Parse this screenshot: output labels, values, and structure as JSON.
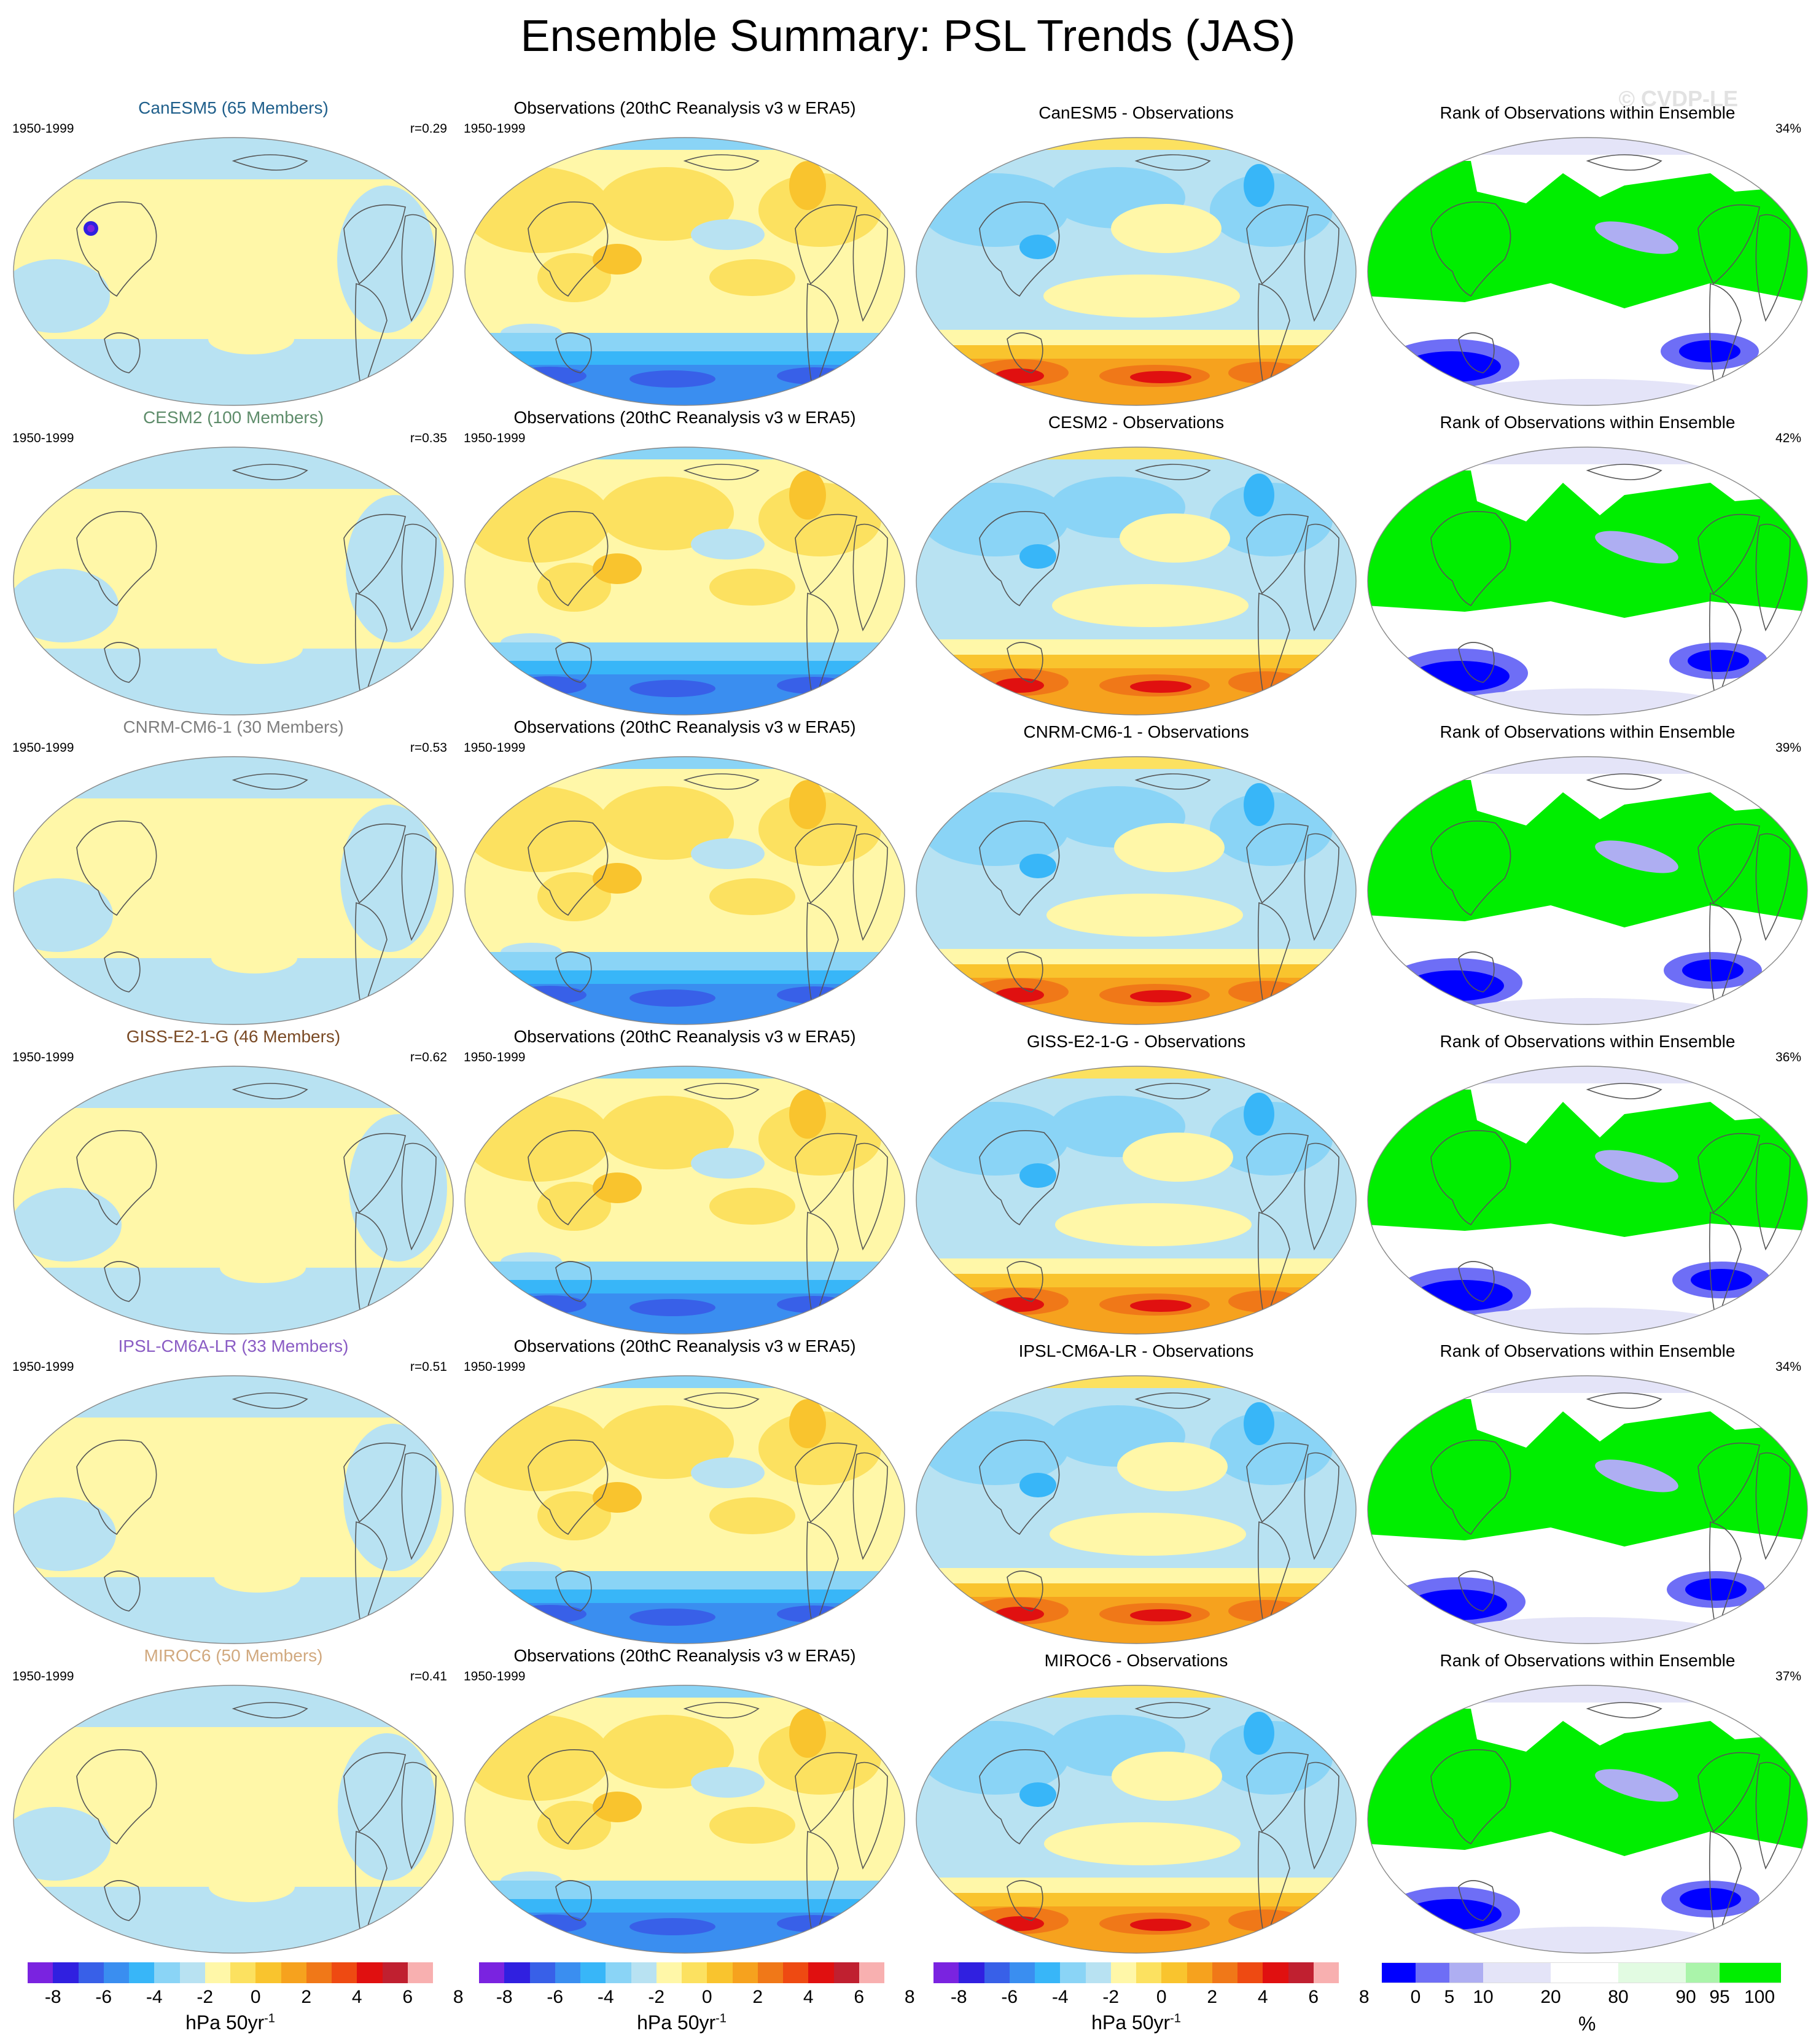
{
  "title": "Ensemble Summary: PSL Trends (JAS)",
  "watermark": "© CVDP-LE",
  "period": "1950-1999",
  "obs_title": "Observations (20thC Reanalysis v3 w ERA5)",
  "rank_title": "Rank of Observations within Ensemble",
  "rows": [
    {
      "model_title": "CanESM5 (65 Members)",
      "model_color": "#1f5f8b",
      "corr": "r=0.29",
      "diff_title": "CanESM5 - Observations",
      "rank_pct": "34%"
    },
    {
      "model_title": "CESM2 (100 Members)",
      "model_color": "#5e8c6a",
      "corr": "r=0.35",
      "diff_title": "CESM2 - Observations",
      "rank_pct": "42%"
    },
    {
      "model_title": "CNRM-CM6-1 (30 Members)",
      "model_color": "#7f7f7f",
      "corr": "r=0.53",
      "diff_title": "CNRM-CM6-1 - Observations",
      "rank_pct": "39%"
    },
    {
      "model_title": "GISS-E2-1-G (46 Members)",
      "model_color": "#7a4a25",
      "corr": "r=0.62",
      "diff_title": "GISS-E2-1-G - Observations",
      "rank_pct": "36%"
    },
    {
      "model_title": "IPSL-CM6A-LR (33 Members)",
      "model_color": "#8a5cc4",
      "corr": "r=0.51",
      "diff_title": "IPSL-CM6A-LR - Observations",
      "rank_pct": "34%"
    },
    {
      "model_title": "MIROC6 (50 Members)",
      "model_color": "#d1a97f",
      "corr": "r=0.41",
      "diff_title": "MIROC6 - Observations",
      "rank_pct": "37%"
    }
  ],
  "colorbars": {
    "trend": {
      "unit": "hPa 50yr",
      "unit_sup": "-1",
      "tick_labels": [
        "-8",
        "-6",
        "-4",
        "-2",
        "0",
        "2",
        "4",
        "6",
        "8"
      ],
      "colors": [
        "#7a23e0",
        "#3020e0",
        "#3860e8",
        "#3a8ef0",
        "#38b6f8",
        "#8ad4f6",
        "#b8e2f2",
        "#fff7a8",
        "#fce160",
        "#f9c42e",
        "#f6a21e",
        "#f07818",
        "#ee4a12",
        "#e01010",
        "#c02030",
        "#f8b0b0"
      ]
    },
    "rank": {
      "unit": "%",
      "tick_labels": [
        "0",
        "5",
        "10",
        "20",
        "80",
        "90",
        "95",
        "100"
      ],
      "colors": [
        "#0000ff",
        "#6e6ef6",
        "#aeaef2",
        "#e4e4f8",
        "#ffffff",
        "#e2fbe2",
        "#aaf4aa",
        "#00ee00"
      ]
    }
  }
}
